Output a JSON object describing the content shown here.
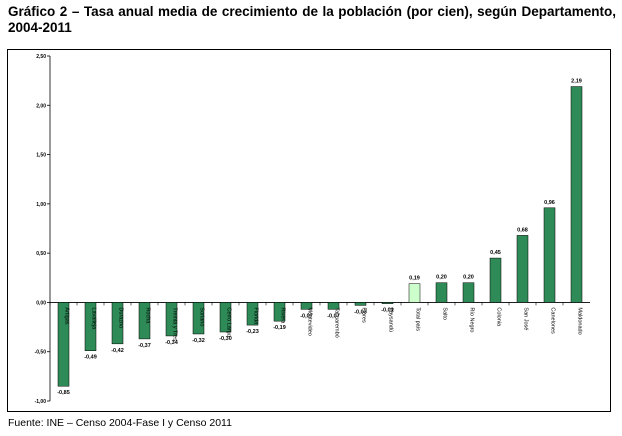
{
  "title": "Gráfico 2 – Tasa anual media de crecimiento de la población (por cien), según Departamento, 2004-2011",
  "source": "Fuente: INE – Censo 2004-Fase I y Censo 2011",
  "colors": {
    "bar": "#2e8b57",
    "highlight": "#ccffcc",
    "bar_border": "#000000"
  },
  "chart_data": {
    "type": "bar",
    "title": "",
    "xlabel": "",
    "ylabel": "",
    "ylim": [
      -1.0,
      2.5
    ],
    "yticks": [
      "2,50",
      "2,00",
      "1,50",
      "1,00",
      "0,50",
      "0,00",
      "-0,50",
      "-1,00"
    ],
    "ytick_values": [
      2.5,
      2.0,
      1.5,
      1.0,
      0.5,
      0.0,
      -0.5,
      -1.0
    ],
    "grid": false,
    "highlight_category": "Total país",
    "categories": [
      "Artigas",
      "Lavalleja",
      "Durazno",
      "Rocha",
      "Treinta y Tres",
      "Soriano",
      "Cerro Largo",
      "Florida",
      "Rivera",
      "Montevideo",
      "Tacuarembó",
      "Flores",
      "Paysandú",
      "Total país",
      "Salto",
      "Río Negro",
      "Colonia",
      "San José",
      "Canelones",
      "Maldonado"
    ],
    "values": [
      -0.85,
      -0.49,
      -0.42,
      -0.37,
      -0.34,
      -0.32,
      -0.3,
      -0.23,
      -0.19,
      -0.07,
      -0.07,
      -0.03,
      -0.01,
      0.19,
      0.2,
      0.2,
      0.45,
      0.68,
      0.96,
      2.19
    ],
    "value_labels": [
      "-0,85",
      "-0,49",
      "-0,42",
      "-0,37",
      "-0,34",
      "-0,32",
      "-0,30",
      "-0,23",
      "-0,19",
      "-0,07",
      "-0,07",
      "-0,03",
      "-0,01",
      "0,19",
      "0,20",
      "0,20",
      "0,45",
      "0,68",
      "0,96",
      "2,19"
    ]
  }
}
